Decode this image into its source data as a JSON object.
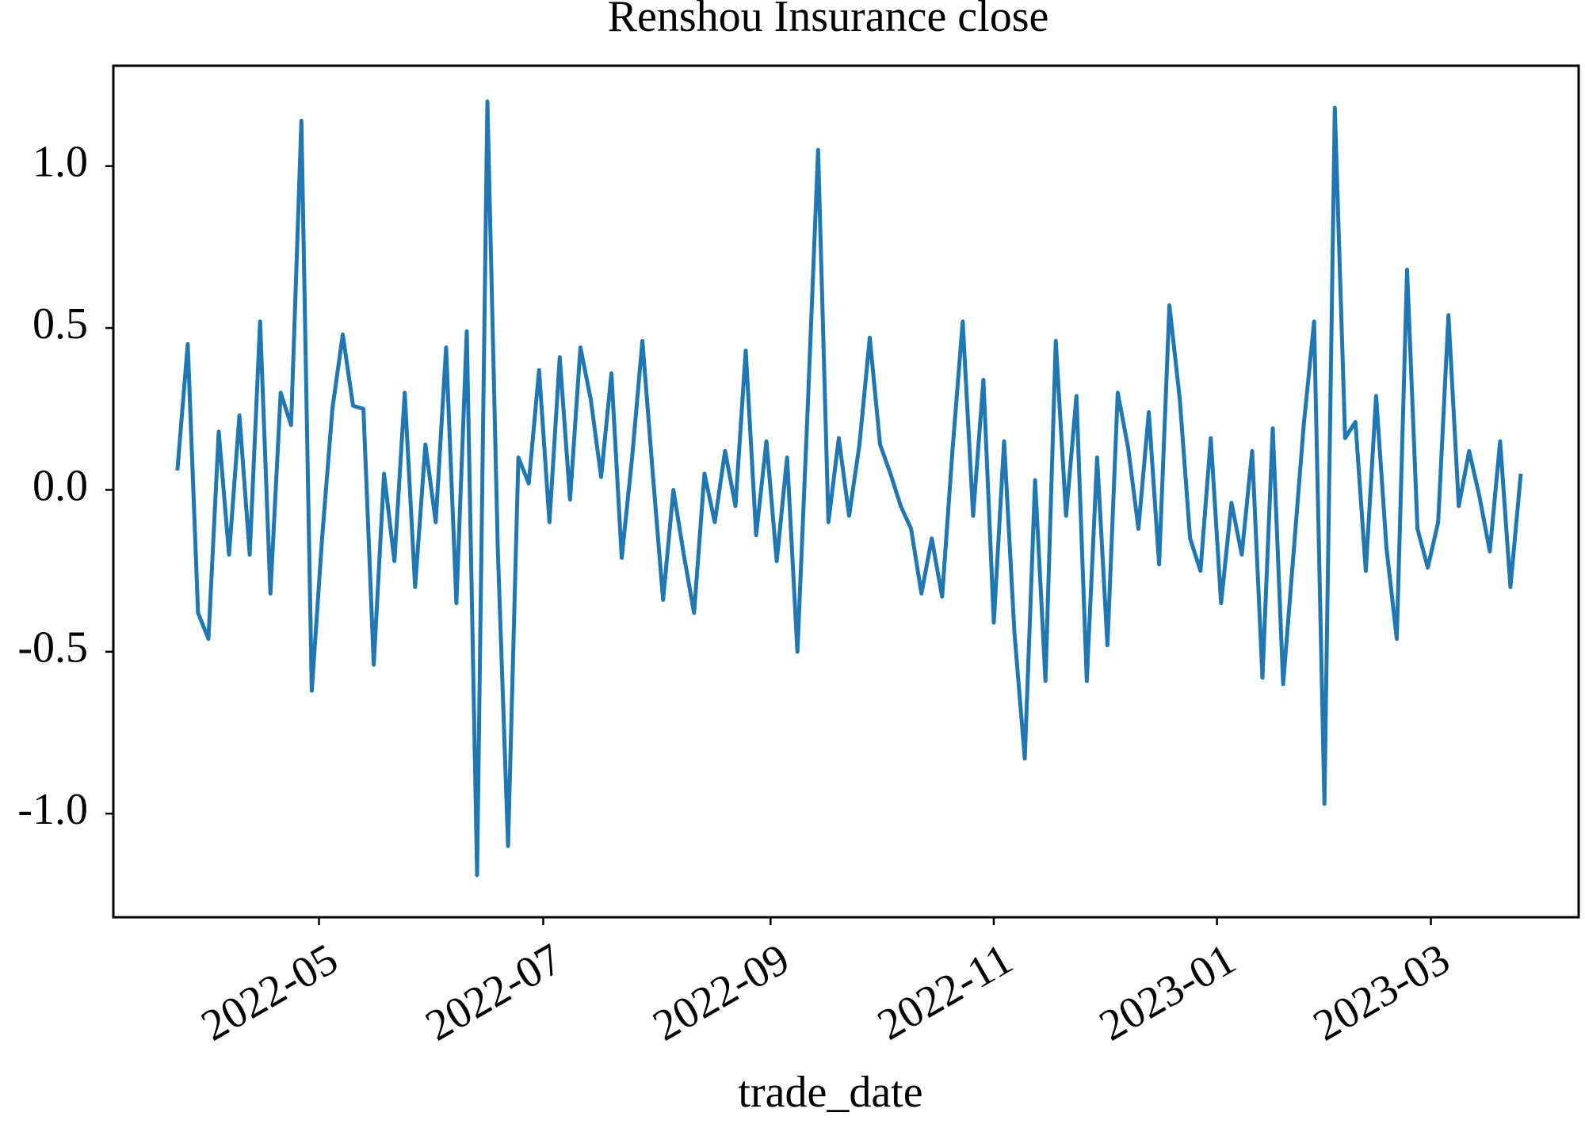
{
  "chart_data": {
    "type": "line",
    "title": "Renshou Insurance close",
    "x_label": "trade_date",
    "series": [
      {
        "name": "close",
        "color": "#1f77b4",
        "values": [
          0.06,
          0.45,
          -0.38,
          -0.46,
          0.18,
          -0.2,
          0.23,
          -0.2,
          0.52,
          -0.32,
          0.3,
          0.2,
          1.14,
          -0.62,
          -0.15,
          0.25,
          0.48,
          0.26,
          0.25,
          -0.54,
          0.05,
          -0.22,
          0.3,
          -0.3,
          0.14,
          -0.1,
          0.44,
          -0.35,
          0.49,
          -1.19,
          1.2,
          -0.18,
          -1.1,
          0.1,
          0.02,
          0.37,
          -0.1,
          0.41,
          -0.03,
          0.44,
          0.28,
          0.04,
          0.36,
          -0.21,
          0.1,
          0.46,
          0.05,
          -0.34,
          0.0,
          -0.2,
          -0.38,
          0.05,
          -0.1,
          0.12,
          -0.05,
          0.43,
          -0.14,
          0.15,
          -0.22,
          0.1,
          -0.5,
          0.26,
          1.05,
          -0.1,
          0.16,
          -0.08,
          0.14,
          0.47,
          0.14,
          0.05,
          -0.05,
          -0.12,
          -0.32,
          -0.15,
          -0.33,
          0.12,
          0.52,
          -0.08,
          0.34,
          -0.41,
          0.15,
          -0.44,
          -0.83,
          0.03,
          -0.59,
          0.46,
          -0.08,
          0.29,
          -0.59,
          0.1,
          -0.48,
          0.3,
          0.13,
          -0.12,
          0.24,
          -0.23,
          0.57,
          0.28,
          -0.15,
          -0.25,
          0.16,
          -0.35,
          -0.04,
          -0.2,
          0.12,
          -0.58,
          0.19,
          -0.6,
          -0.2,
          0.2,
          0.52,
          -0.97,
          1.18,
          0.16,
          0.21,
          -0.25,
          0.29,
          -0.18,
          -0.46,
          0.68,
          -0.12,
          -0.24,
          -0.1,
          0.54,
          -0.05,
          0.12,
          -0.02,
          -0.19,
          0.15,
          -0.3,
          0.05
        ]
      }
    ],
    "xlim": [
      -6.2,
      135.6
    ],
    "xticks": [
      {
        "value": 13.7,
        "label": "2022-05"
      },
      {
        "value": 35.4,
        "label": "2022-07"
      },
      {
        "value": 57.4,
        "label": "2022-09"
      },
      {
        "value": 79.0,
        "label": "2022-11"
      },
      {
        "value": 100.6,
        "label": "2023-01"
      },
      {
        "value": 121.3,
        "label": "2023-03"
      }
    ],
    "ylim": [
      -1.32,
      1.31
    ],
    "yticks": [
      {
        "value": -1,
        "label": "-1.0"
      },
      -0.5,
      {
        "value": 0,
        "label": "0.0"
      },
      0.5,
      {
        "value": 1,
        "label": "1.0"
      }
    ],
    "grid": false
  }
}
